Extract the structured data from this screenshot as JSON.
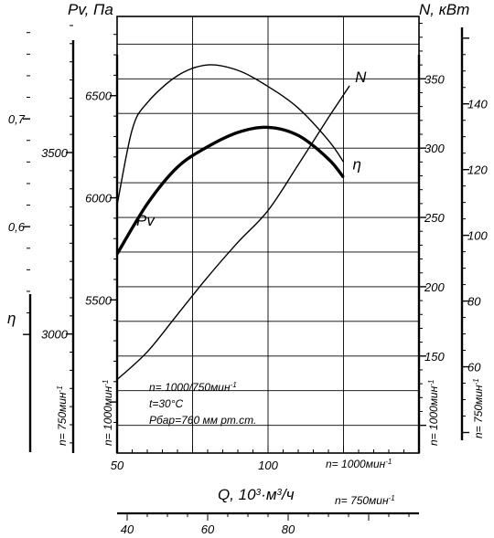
{
  "chart_data": {
    "type": "line",
    "axes": {
      "pv": {
        "title": "Pv, Па",
        "scale_1000": {
          "ticks": [
            5500,
            6000,
            6500
          ],
          "ylim": [
            4750,
            6888
          ]
        },
        "scale_750": {
          "ticks": [
            3000,
            3500
          ],
          "ylim": [
            2672,
            3875
          ]
        }
      },
      "n_power": {
        "title": "N, кВт",
        "scale_1000": {
          "ticks": [
            150,
            200,
            250,
            300,
            350
          ],
          "ylim": [
            80,
            395
          ]
        },
        "scale_750": {
          "ticks": [
            60,
            80,
            100,
            120,
            140
          ],
          "ylim": [
            33.75,
            166.6
          ]
        }
      },
      "eta": {
        "title": "η",
        "ticks": [
          0.6,
          0.7
        ],
        "ylim": [
          0.39,
          0.795
        ]
      },
      "q": {
        "title": "Q, 10",
        "title_exp": "3",
        "title_unit": "·м",
        "title_unit_exp": "3",
        "title_tail": "/ч",
        "scale_1000": {
          "ticks": [
            50,
            100
          ],
          "xlim": [
            50,
            150
          ]
        },
        "scale_750": {
          "ticks": [
            40,
            60,
            80
          ],
          "xlim": [
            37.5,
            112.5
          ]
        }
      }
    },
    "speed_labels": {
      "n1000": "n= 1000мин",
      "n750": "n= 750мин",
      "exp": "-1",
      "eta_scale": "n= 750мин",
      "pv_scale": "n= 1000мин",
      "n_scale_1000": "n= 1000мин",
      "n_scale_750": "n= 750мин"
    },
    "annotations": {
      "line1": "n= 1000/750мин",
      "line1_exp": "-1",
      "line2": "t=30°C",
      "line3": "Pбар=760 мм рт.ст."
    },
    "series": [
      {
        "name": "Pv",
        "axis": "pv",
        "x": [
          50,
          60,
          70,
          80,
          90,
          100,
          110,
          120,
          125
        ],
        "y": [
          5725,
          5970,
          6150,
          6250,
          6320,
          6345,
          6305,
          6190,
          6100
        ]
      },
      {
        "name": "N",
        "axis": "n_power",
        "x": [
          50,
          60,
          70,
          80,
          90,
          100,
          110,
          120,
          127
        ],
        "y": [
          133,
          153,
          180,
          207,
          232,
          255,
          288,
          322,
          345
        ]
      },
      {
        "name": "η",
        "axis": "eta",
        "x": [
          50,
          55,
          60,
          70,
          80,
          90,
          100,
          110,
          120,
          125
        ],
        "y": [
          0.62,
          0.69,
          0.715,
          0.74,
          0.75,
          0.745,
          0.73,
          0.71,
          0.68,
          0.66
        ]
      }
    ],
    "grid": true
  }
}
